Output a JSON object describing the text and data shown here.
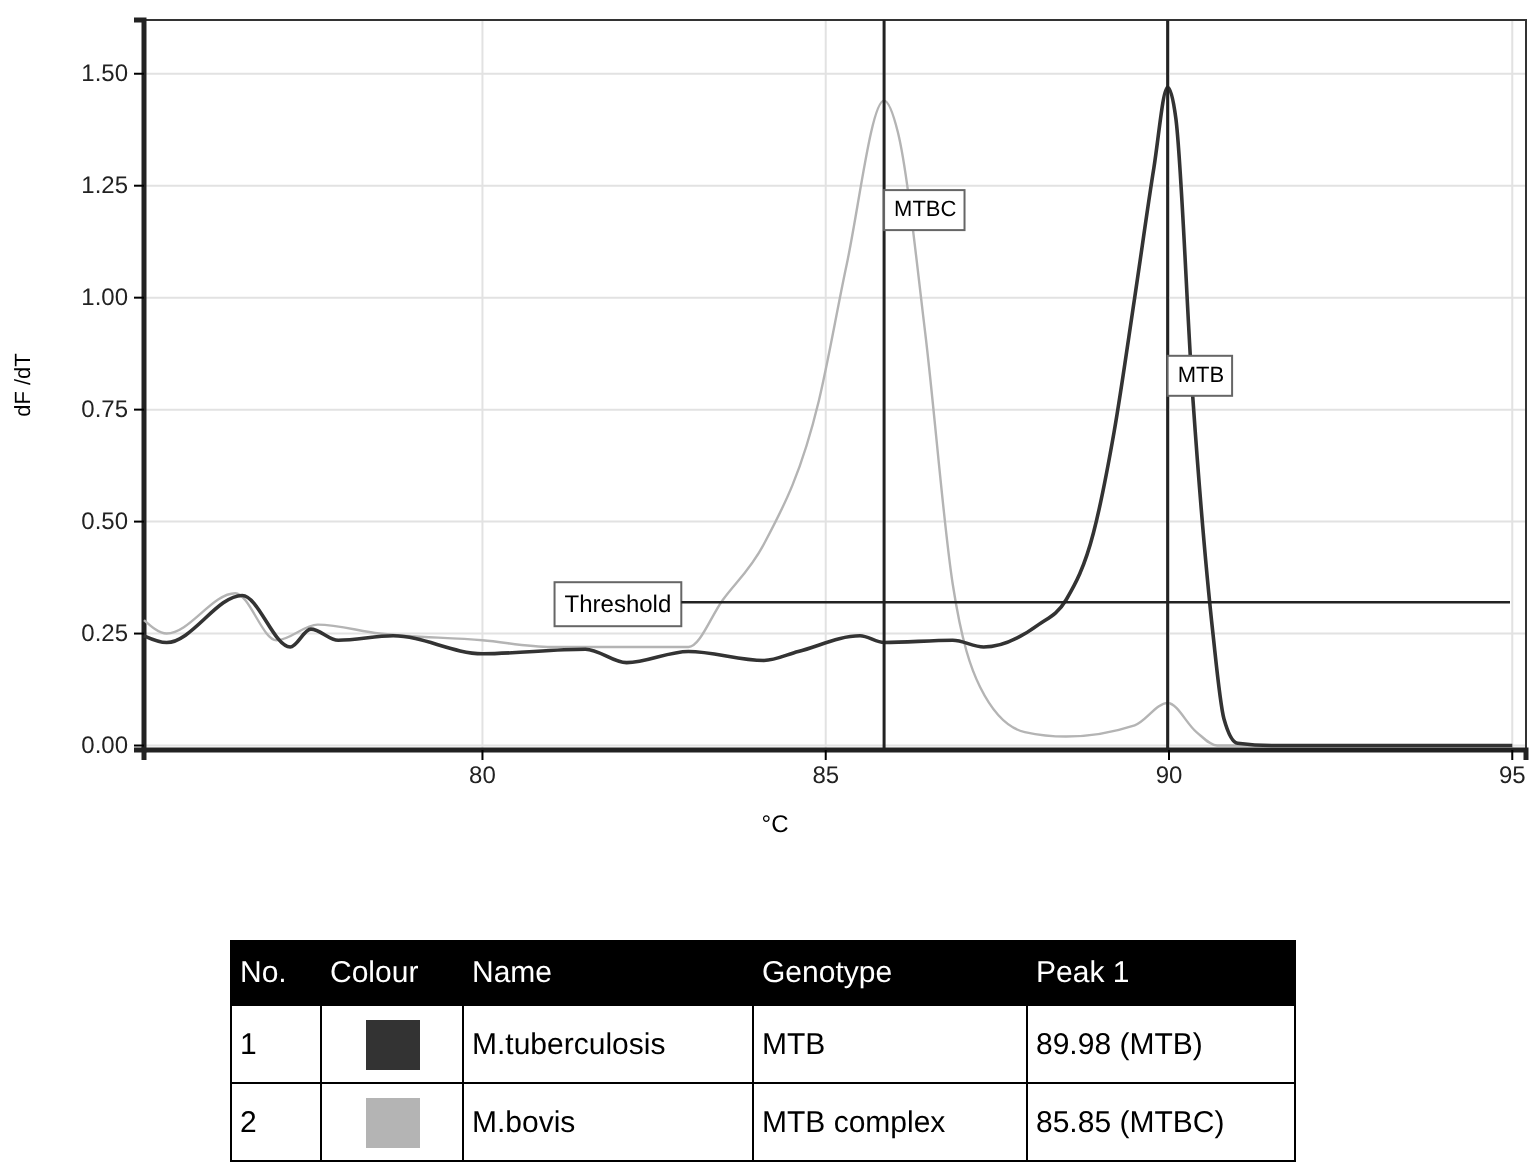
{
  "chart_data": {
    "type": "line",
    "xlabel": "°C",
    "ylabel": "dF /dT",
    "xlim": [
      75.07,
      95.2
    ],
    "ylim": [
      -0.01,
      1.62
    ],
    "xticks": [
      80,
      85,
      90,
      95
    ],
    "yticks": [
      {
        "value": 0,
        "label": "0.00"
      },
      {
        "value": 0.25,
        "label": "0.25"
      },
      {
        "value": 0.5,
        "label": "0.50"
      },
      {
        "value": 0.75,
        "label": "0.75"
      },
      {
        "value": 1,
        "label": "1.00"
      },
      {
        "value": 1.25,
        "label": "1.25"
      },
      {
        "value": 1.5,
        "label": "1.50"
      }
    ],
    "grid": true,
    "legend": "bottom",
    "marker": "none",
    "line_style": "solid",
    "ref_lines": [
      {
        "axis": "x",
        "value": 85.85,
        "label": "MTBC",
        "color": "#222222"
      },
      {
        "axis": "x",
        "value": 89.98,
        "label": "MTB",
        "color": "#222222"
      },
      {
        "axis": "y",
        "value": 0.32,
        "label": "Threshold",
        "color": "#222222"
      }
    ],
    "annotations": [
      "No.",
      "Colour",
      "Name",
      "Genotype",
      "Peak 1",
      "1",
      "MTB",
      "89.98 (MTB)",
      "2",
      "MTB complex",
      "85.85 (MTBC)"
    ],
    "series": [
      {
        "name": "M.tuberculosis",
        "color": "#333333",
        "x": [
          75.07,
          75.4,
          76.5,
          77.2,
          77.5,
          77.9,
          78.7,
          80,
          81.5,
          82.1,
          83,
          84.1,
          84.6,
          85.5,
          85.85,
          86.85,
          87.3,
          88.1,
          88.5,
          88.9,
          89.2,
          89.5,
          89.78,
          89.98,
          90.1,
          90.35,
          90.64,
          90.8,
          91.0,
          91.5,
          95
        ],
        "values": [
          0.245,
          0.23,
          0.335,
          0.22,
          0.26,
          0.235,
          0.245,
          0.205,
          0.215,
          0.185,
          0.21,
          0.19,
          0.21,
          0.245,
          0.23,
          0.235,
          0.22,
          0.27,
          0.325,
          0.475,
          0.7,
          1.0,
          1.29,
          1.47,
          1.4,
          0.77,
          0.25,
          0.06,
          0.005,
          0,
          0
        ]
      },
      {
        "name": "M.bovis",
        "color": "#b4b4b4",
        "x": [
          75.07,
          75.4,
          76.4,
          77.0,
          77.6,
          78.5,
          80,
          81,
          82,
          83,
          83.5,
          84.1,
          84.9,
          85.3,
          85.85,
          86.05,
          86.45,
          86.85,
          87.25,
          87.9,
          88.5,
          89.5,
          89.98,
          90.4,
          90.7,
          95
        ],
        "values": [
          0.28,
          0.25,
          0.34,
          0.235,
          0.27,
          0.25,
          0.235,
          0.22,
          0.22,
          0.22,
          0.325,
          0.45,
          0.77,
          1.07,
          1.44,
          1.37,
          0.92,
          0.36,
          0.13,
          0.03,
          0.02,
          0.045,
          0.095,
          0.03,
          0,
          0
        ]
      }
    ]
  }
}
